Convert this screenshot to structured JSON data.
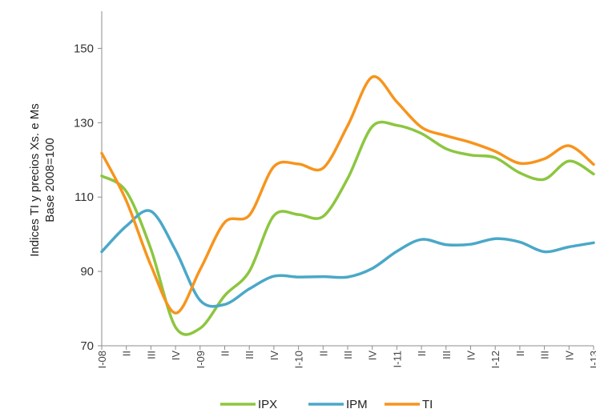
{
  "chart_data": {
    "type": "line",
    "title": "",
    "xlabel": "",
    "ylabel_lines": [
      "Indices TI y precios Xs. e Ms",
      "Base 2008=100"
    ],
    "categories": [
      "I-08",
      "II",
      "III",
      "IV",
      "I-09",
      "II",
      "III",
      "IV",
      "I-10",
      "II",
      "III",
      "IV",
      "I-11",
      "II",
      "III",
      "IV",
      "I-12",
      "II",
      "III",
      "IV",
      "I-13"
    ],
    "ylim": [
      70,
      160
    ],
    "yticks": [
      70,
      90,
      110,
      130,
      150
    ],
    "grid": false,
    "legend_position": "bottom",
    "series": [
      {
        "name": "IPX",
        "color": "#8cc63f",
        "values": [
          115.7,
          111.5,
          96,
          75,
          74.7,
          83.5,
          90,
          105,
          105.3,
          104.8,
          115,
          129,
          129.3,
          127.1,
          123,
          121.3,
          120.6,
          116.5,
          114.8,
          119.7,
          116.2
        ]
      },
      {
        "name": "IPM",
        "color": "#4aa8c8",
        "values": [
          95.3,
          102.2,
          106.2,
          95.7,
          82.2,
          81.1,
          85.3,
          88.7,
          88.5,
          88.6,
          88.5,
          90.8,
          95.4,
          98.6,
          97.2,
          97.3,
          98.8,
          97.9,
          95.3,
          96.6,
          97.7
        ]
      },
      {
        "name": "TI",
        "color": "#f7941d",
        "values": [
          121.8,
          109,
          91.6,
          78.8,
          90.5,
          103.2,
          105.1,
          118.2,
          118.9,
          117.8,
          129.2,
          142.3,
          135.6,
          128.8,
          126.5,
          124.7,
          122.3,
          119.1,
          120.3,
          123.8,
          118.8
        ]
      }
    ]
  }
}
